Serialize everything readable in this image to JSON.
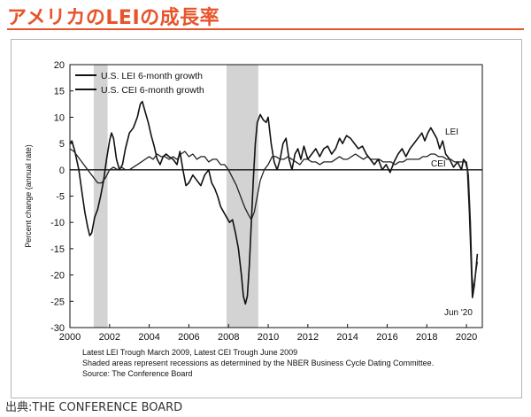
{
  "page": {
    "title": "アメリカのLEIの成長率",
    "source": "出典:THE CONFERENCE BOARD",
    "colors": {
      "title": "#e8542a",
      "recession_shade": "#d3d3d3",
      "lei": "#111111",
      "cei": "#222222"
    }
  },
  "chart_data": {
    "type": "line",
    "title": "",
    "xlabel": "",
    "ylabel": "Percent change (annual rate)",
    "xlim": [
      2000,
      2020.8
    ],
    "ylim": [
      -30,
      20
    ],
    "x_ticks": [
      "2000",
      "2002",
      "2004",
      "2006",
      "2008",
      "2010",
      "2012",
      "2014",
      "2016",
      "2018",
      "2020"
    ],
    "y_ticks": [
      "20",
      "15",
      "10",
      "5",
      "0",
      "-5",
      "-10",
      "-15",
      "-20",
      "-25",
      "-30"
    ],
    "grid": false,
    "zero_line": true,
    "legend_position": "top-left",
    "recessions": [
      {
        "start": 2001.2,
        "end": 2001.9
      },
      {
        "start": 2007.9,
        "end": 2009.5
      }
    ],
    "series": [
      {
        "name": "U.S. LEI 6-month growth",
        "label": "LEI",
        "points": [
          [
            2000.0,
            5
          ],
          [
            2000.1,
            5.5
          ],
          [
            2000.25,
            3.5
          ],
          [
            2000.45,
            0
          ],
          [
            2000.6,
            -4
          ],
          [
            2000.75,
            -8
          ],
          [
            2000.9,
            -11
          ],
          [
            2001.0,
            -12.5
          ],
          [
            2001.1,
            -12
          ],
          [
            2001.25,
            -9
          ],
          [
            2001.4,
            -7.5
          ],
          [
            2001.55,
            -5
          ],
          [
            2001.7,
            -2
          ],
          [
            2001.85,
            2
          ],
          [
            2002.0,
            5.5
          ],
          [
            2002.1,
            7
          ],
          [
            2002.2,
            6
          ],
          [
            2002.35,
            2
          ],
          [
            2002.5,
            0
          ],
          [
            2002.65,
            1
          ],
          [
            2002.8,
            4
          ],
          [
            2003.0,
            7
          ],
          [
            2003.2,
            8
          ],
          [
            2003.4,
            10
          ],
          [
            2003.55,
            12.5
          ],
          [
            2003.65,
            13
          ],
          [
            2003.8,
            11
          ],
          [
            2003.95,
            9
          ],
          [
            2004.1,
            6.5
          ],
          [
            2004.25,
            4.5
          ],
          [
            2004.4,
            2
          ],
          [
            2004.55,
            1
          ],
          [
            2004.7,
            2.5
          ],
          [
            2004.85,
            3
          ],
          [
            2005.0,
            2.5
          ],
          [
            2005.2,
            2
          ],
          [
            2005.4,
            1
          ],
          [
            2005.55,
            3.5
          ],
          [
            2005.7,
            0
          ],
          [
            2005.85,
            -3
          ],
          [
            2006.0,
            -2.5
          ],
          [
            2006.2,
            -1
          ],
          [
            2006.4,
            -2
          ],
          [
            2006.6,
            -3
          ],
          [
            2006.8,
            -1
          ],
          [
            2007.0,
            0
          ],
          [
            2007.15,
            -2.5
          ],
          [
            2007.3,
            -3.5
          ],
          [
            2007.45,
            -5
          ],
          [
            2007.6,
            -7
          ],
          [
            2007.75,
            -8
          ],
          [
            2007.9,
            -9
          ],
          [
            2008.05,
            -10
          ],
          [
            2008.2,
            -9.5
          ],
          [
            2008.35,
            -12
          ],
          [
            2008.5,
            -15
          ],
          [
            2008.65,
            -20
          ],
          [
            2008.75,
            -24
          ],
          [
            2008.85,
            -25.5
          ],
          [
            2008.95,
            -24
          ],
          [
            2009.05,
            -18
          ],
          [
            2009.15,
            -10
          ],
          [
            2009.25,
            -2
          ],
          [
            2009.35,
            5
          ],
          [
            2009.45,
            9
          ],
          [
            2009.6,
            10.5
          ],
          [
            2009.75,
            9.5
          ],
          [
            2009.9,
            9
          ],
          [
            2010.0,
            10
          ],
          [
            2010.15,
            5
          ],
          [
            2010.3,
            1.5
          ],
          [
            2010.45,
            0
          ],
          [
            2010.6,
            2
          ],
          [
            2010.75,
            5
          ],
          [
            2010.9,
            6
          ],
          [
            2011.05,
            2
          ],
          [
            2011.2,
            0
          ],
          [
            2011.35,
            3
          ],
          [
            2011.5,
            4
          ],
          [
            2011.65,
            2
          ],
          [
            2011.8,
            4.5
          ],
          [
            2012.0,
            2
          ],
          [
            2012.2,
            3
          ],
          [
            2012.4,
            4
          ],
          [
            2012.6,
            2.5
          ],
          [
            2012.8,
            4
          ],
          [
            2013.0,
            4.5
          ],
          [
            2013.2,
            3
          ],
          [
            2013.4,
            4
          ],
          [
            2013.6,
            6
          ],
          [
            2013.75,
            5
          ],
          [
            2013.95,
            6.5
          ],
          [
            2014.15,
            6
          ],
          [
            2014.35,
            5
          ],
          [
            2014.55,
            4
          ],
          [
            2014.75,
            4.5
          ],
          [
            2014.95,
            3
          ],
          [
            2015.15,
            2
          ],
          [
            2015.35,
            1
          ],
          [
            2015.55,
            2
          ],
          [
            2015.75,
            0
          ],
          [
            2015.95,
            1
          ],
          [
            2016.15,
            -0.5
          ],
          [
            2016.35,
            1.5
          ],
          [
            2016.55,
            3
          ],
          [
            2016.75,
            4
          ],
          [
            2016.95,
            2.5
          ],
          [
            2017.15,
            4
          ],
          [
            2017.35,
            5
          ],
          [
            2017.55,
            6
          ],
          [
            2017.75,
            7
          ],
          [
            2017.9,
            5.5
          ],
          [
            2018.05,
            7
          ],
          [
            2018.2,
            8
          ],
          [
            2018.35,
            7
          ],
          [
            2018.5,
            6
          ],
          [
            2018.65,
            4
          ],
          [
            2018.8,
            5.5
          ],
          [
            2018.95,
            3
          ],
          [
            2019.15,
            2
          ],
          [
            2019.35,
            0.5
          ],
          [
            2019.55,
            1.5
          ],
          [
            2019.75,
            0
          ],
          [
            2019.85,
            2
          ],
          [
            2019.95,
            1.5
          ],
          [
            2020.05,
            0
          ],
          [
            2020.15,
            -8
          ],
          [
            2020.25,
            -19
          ],
          [
            2020.3,
            -24.3
          ],
          [
            2020.4,
            -22
          ],
          [
            2020.5,
            -18
          ],
          [
            2020.55,
            -16
          ]
        ]
      },
      {
        "name": "U.S. CEI 6-month growth",
        "label": "CEI",
        "points": [
          [
            2000.0,
            4
          ],
          [
            2000.2,
            3.5
          ],
          [
            2000.4,
            2.5
          ],
          [
            2000.6,
            1.5
          ],
          [
            2000.8,
            0.5
          ],
          [
            2001.0,
            -0.5
          ],
          [
            2001.2,
            -1.5
          ],
          [
            2001.4,
            -2.5
          ],
          [
            2001.6,
            -2.5
          ],
          [
            2001.8,
            -1.5
          ],
          [
            2002.0,
            0
          ],
          [
            2002.2,
            0.5
          ],
          [
            2002.4,
            0
          ],
          [
            2002.6,
            0.5
          ],
          [
            2002.8,
            0
          ],
          [
            2003.0,
            0
          ],
          [
            2003.2,
            0.5
          ],
          [
            2003.4,
            1
          ],
          [
            2003.6,
            1.5
          ],
          [
            2003.8,
            2
          ],
          [
            2004.0,
            2.5
          ],
          [
            2004.2,
            2
          ],
          [
            2004.4,
            3
          ],
          [
            2004.6,
            2.5
          ],
          [
            2004.8,
            2.5
          ],
          [
            2005.0,
            2
          ],
          [
            2005.2,
            2.5
          ],
          [
            2005.4,
            2
          ],
          [
            2005.6,
            3
          ],
          [
            2005.8,
            3.5
          ],
          [
            2006.0,
            2.5
          ],
          [
            2006.2,
            3
          ],
          [
            2006.4,
            2
          ],
          [
            2006.6,
            2.5
          ],
          [
            2006.8,
            2.5
          ],
          [
            2007.0,
            1.5
          ],
          [
            2007.2,
            2
          ],
          [
            2007.4,
            2
          ],
          [
            2007.6,
            1
          ],
          [
            2007.8,
            1
          ],
          [
            2008.0,
            0
          ],
          [
            2008.2,
            -1.5
          ],
          [
            2008.4,
            -3
          ],
          [
            2008.6,
            -5
          ],
          [
            2008.8,
            -7
          ],
          [
            2009.0,
            -8.5
          ],
          [
            2009.15,
            -9.5
          ],
          [
            2009.3,
            -8
          ],
          [
            2009.45,
            -5
          ],
          [
            2009.6,
            -2
          ],
          [
            2009.8,
            0
          ],
          [
            2010.0,
            1
          ],
          [
            2010.2,
            2.5
          ],
          [
            2010.4,
            2.5
          ],
          [
            2010.6,
            2
          ],
          [
            2010.8,
            2
          ],
          [
            2011.0,
            2.5
          ],
          [
            2011.2,
            2
          ],
          [
            2011.4,
            1.5
          ],
          [
            2011.6,
            1
          ],
          [
            2011.8,
            2
          ],
          [
            2012.0,
            2
          ],
          [
            2012.2,
            1.5
          ],
          [
            2012.4,
            1.5
          ],
          [
            2012.6,
            1
          ],
          [
            2012.8,
            1.5
          ],
          [
            2013.0,
            1.5
          ],
          [
            2013.2,
            1.5
          ],
          [
            2013.4,
            2
          ],
          [
            2013.6,
            2.5
          ],
          [
            2013.8,
            2
          ],
          [
            2014.0,
            2
          ],
          [
            2014.2,
            2.5
          ],
          [
            2014.4,
            3
          ],
          [
            2014.6,
            2.5
          ],
          [
            2014.8,
            2
          ],
          [
            2015.0,
            2.5
          ],
          [
            2015.2,
            2
          ],
          [
            2015.4,
            2
          ],
          [
            2015.6,
            2
          ],
          [
            2015.8,
            1.5
          ],
          [
            2016.0,
            1.5
          ],
          [
            2016.2,
            1.5
          ],
          [
            2016.4,
            1
          ],
          [
            2016.6,
            1.5
          ],
          [
            2016.8,
            1.5
          ],
          [
            2017.0,
            2
          ],
          [
            2017.2,
            2
          ],
          [
            2017.4,
            2
          ],
          [
            2017.6,
            2
          ],
          [
            2017.8,
            2.5
          ],
          [
            2018.0,
            2.5
          ],
          [
            2018.2,
            3
          ],
          [
            2018.4,
            3
          ],
          [
            2018.6,
            2.5
          ],
          [
            2018.8,
            2.5
          ],
          [
            2019.0,
            2
          ],
          [
            2019.2,
            2
          ],
          [
            2019.4,
            1.5
          ],
          [
            2019.6,
            1.5
          ],
          [
            2019.8,
            1.5
          ],
          [
            2020.0,
            1.5
          ],
          [
            2020.1,
            -1
          ],
          [
            2020.2,
            -10
          ],
          [
            2020.28,
            -20
          ],
          [
            2020.35,
            -23
          ],
          [
            2020.45,
            -20
          ],
          [
            2020.55,
            -17.5
          ]
        ]
      }
    ],
    "annotations": [
      "LEI",
      "CEI",
      "Jun '20"
    ],
    "footnotes": [
      "Latest LEI Trough March 2009, Latest CEI Trough June 2009",
      "Shaded areas represent recessions as determined by the NBER Business Cycle Dating Committee.",
      "Source: The Conference Board"
    ]
  }
}
